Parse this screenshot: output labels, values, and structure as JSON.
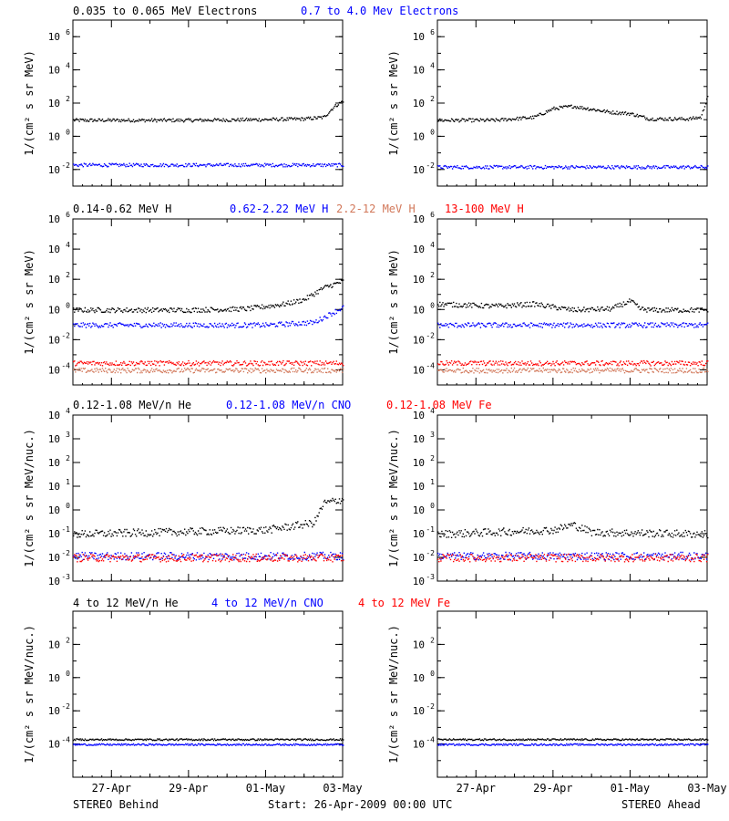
{
  "footer": {
    "left": "STEREO Behind",
    "center": "Start: 26-Apr-2009 00:00 UTC",
    "right": "STEREO Ahead"
  },
  "x_ticks": [
    "27-Apr",
    "29-Apr",
    "01-May",
    "03-May"
  ],
  "colors": {
    "black": "#000000",
    "blue": "#0000ff",
    "orange": "#d2785a",
    "red": "#ff0000"
  },
  "chart_data": [
    {
      "type": "scatter",
      "panel": "Electrons",
      "ylabel": "1/(cm² s sr MeV)",
      "yscale": "log",
      "ylim": [
        0.001,
        10000000
      ],
      "yticks": [
        0.01,
        1,
        100,
        10000,
        1000000
      ],
      "xlim": [
        "26-Apr-2009",
        "03-May-2009"
      ],
      "legend": [
        {
          "name": "0.035 to 0.065 MeV Electrons",
          "color": "#000000"
        },
        {
          "name": "0.7 to 4.0 Mev Electrons",
          "color": "#0000ff"
        }
      ],
      "behind": [
        {
          "color": "#000000",
          "x": [
            "26-Apr",
            "29-Apr",
            "01-May",
            "02-May",
            "02-May 12:00",
            "02-May 18:00",
            "03-May"
          ],
          "y": [
            10,
            10,
            11,
            12,
            15,
            60,
            150
          ]
        },
        {
          "color": "#0000ff",
          "x": [
            "26-Apr",
            "03-May"
          ],
          "y": [
            0.02,
            0.02
          ]
        }
      ],
      "ahead": [
        {
          "color": "#000000",
          "x": [
            "26-Apr",
            "27-Apr 12:00",
            "28-Apr 12:00",
            "29-Apr",
            "29-Apr 12:00",
            "30-Apr 12:00",
            "01-May",
            "01-May 12:00",
            "02-May 12:00",
            "02-May 20:00",
            "03-May"
          ],
          "y": [
            10,
            10,
            15,
            50,
            70,
            30,
            25,
            12,
            12,
            15,
            300
          ]
        },
        {
          "color": "#0000ff",
          "x": [
            "26-Apr",
            "03-May"
          ],
          "y": [
            0.015,
            0.015
          ]
        }
      ]
    },
    {
      "type": "scatter",
      "panel": "Protons",
      "ylabel": "1/(cm² s sr MeV)",
      "yscale": "log",
      "ylim": [
        1e-05,
        1000000
      ],
      "yticks": [
        0.0001,
        0.01,
        1,
        100,
        10000,
        1000000
      ],
      "xlim": [
        "26-Apr-2009",
        "03-May-2009"
      ],
      "legend": [
        {
          "name": "0.14-0.62 MeV H",
          "color": "#000000"
        },
        {
          "name": "0.62-2.22 MeV H",
          "color": "#0000ff"
        },
        {
          "name": "2.2-12 MeV H",
          "color": "#d2785a"
        },
        {
          "name": "13-100 MeV H",
          "color": "#ff0000"
        }
      ],
      "behind": [
        {
          "color": "#000000",
          "x": [
            "26-Apr",
            "29-Apr",
            "30-Apr 12:00",
            "01-May 12:00",
            "02-May",
            "02-May 12:00",
            "03-May"
          ],
          "y": [
            1,
            1,
            1.2,
            2.5,
            5,
            30,
            80
          ]
        },
        {
          "color": "#0000ff",
          "x": [
            "26-Apr",
            "01-May",
            "02-May 06:00",
            "03-May"
          ],
          "y": [
            0.1,
            0.1,
            0.15,
            1.5
          ]
        },
        {
          "color": "#d2785a",
          "x": [
            "26-Apr",
            "03-May"
          ],
          "y": [
            0.0001,
            0.0001
          ]
        },
        {
          "color": "#ff0000",
          "x": [
            "26-Apr",
            "03-May"
          ],
          "y": [
            0.0003,
            0.0003
          ]
        }
      ],
      "ahead": [
        {
          "color": "#000000",
          "x": [
            "26-Apr",
            "27-Apr 12:00",
            "28-Apr 12:00",
            "29-Apr 12:00",
            "30-Apr 12:00",
            "01-May",
            "01-May 06:00",
            "01-May 12:00",
            "03-May"
          ],
          "y": [
            2.5,
            1.8,
            2.5,
            1.0,
            1.2,
            4,
            1.2,
            1.0,
            1.0
          ]
        },
        {
          "color": "#0000ff",
          "x": [
            "26-Apr",
            "03-May"
          ],
          "y": [
            0.1,
            0.1
          ]
        },
        {
          "color": "#d2785a",
          "x": [
            "26-Apr",
            "03-May"
          ],
          "y": [
            0.0001,
            0.0001
          ]
        },
        {
          "color": "#ff0000",
          "x": [
            "26-Apr",
            "03-May"
          ],
          "y": [
            0.0003,
            0.0003
          ]
        }
      ]
    },
    {
      "type": "scatter",
      "panel": "Heavy ions low energy",
      "ylabel": "1/(cm² s sr MeV/nuc.)",
      "yscale": "log",
      "ylim": [
        0.001,
        10000
      ],
      "yticks": [
        0.001,
        0.01,
        0.1,
        1,
        10,
        100,
        1000,
        10000
      ],
      "xlim": [
        "26-Apr-2009",
        "03-May-2009"
      ],
      "legend": [
        {
          "name": "0.12-1.08 MeV/n He",
          "color": "#000000"
        },
        {
          "name": "0.12-1.08 MeV/n CNO",
          "color": "#0000ff"
        },
        {
          "name": "0.12-1.08 MeV Fe",
          "color": "#ff0000"
        }
      ],
      "behind": [
        {
          "color": "#000000",
          "x": [
            "26-Apr",
            "01-May",
            "02-May 06:00",
            "02-May 12:00",
            "03-May"
          ],
          "y": [
            0.1,
            0.15,
            0.3,
            2,
            3
          ]
        },
        {
          "color": "#0000ff",
          "x": [
            "26-Apr",
            "03-May"
          ],
          "y": [
            0.012,
            0.012
          ]
        },
        {
          "color": "#ff0000",
          "x": [
            "26-Apr",
            "03-May"
          ],
          "y": [
            0.01,
            0.01
          ]
        }
      ],
      "ahead": [
        {
          "color": "#000000",
          "x": [
            "26-Apr",
            "29-Apr",
            "29-Apr 12:00",
            "30-Apr",
            "03-May"
          ],
          "y": [
            0.1,
            0.15,
            0.25,
            0.12,
            0.1
          ]
        },
        {
          "color": "#0000ff",
          "x": [
            "26-Apr",
            "03-May"
          ],
          "y": [
            0.012,
            0.012
          ]
        },
        {
          "color": "#ff0000",
          "x": [
            "26-Apr",
            "03-May"
          ],
          "y": [
            0.01,
            0.01
          ]
        }
      ]
    },
    {
      "type": "scatter",
      "panel": "Heavy ions high energy",
      "ylabel": "1/(cm² s sr MeV/nuc.)",
      "yscale": "log",
      "ylim": [
        1e-06,
        10000
      ],
      "yticks": [
        0.0001,
        0.01,
        1,
        100
      ],
      "xlim": [
        "26-Apr-2009",
        "03-May-2009"
      ],
      "legend": [
        {
          "name": "4 to 12 MeV/n He",
          "color": "#000000"
        },
        {
          "name": "4 to 12 MeV/n CNO",
          "color": "#0000ff"
        },
        {
          "name": "4 to 12 MeV Fe",
          "color": "#ff0000"
        }
      ],
      "behind": [
        {
          "color": "#000000",
          "x": [
            "26-Apr",
            "03-May"
          ],
          "y": [
            0.0002,
            0.0002
          ]
        },
        {
          "color": "#0000ff",
          "x": [
            "26-Apr",
            "03-May"
          ],
          "y": [
            0.0001,
            0.0001
          ]
        }
      ],
      "ahead": [
        {
          "color": "#000000",
          "x": [
            "26-Apr",
            "03-May"
          ],
          "y": [
            0.0002,
            0.0002
          ]
        },
        {
          "color": "#0000ff",
          "x": [
            "26-Apr",
            "03-May"
          ],
          "y": [
            0.0001,
            0.0001
          ]
        }
      ]
    }
  ]
}
